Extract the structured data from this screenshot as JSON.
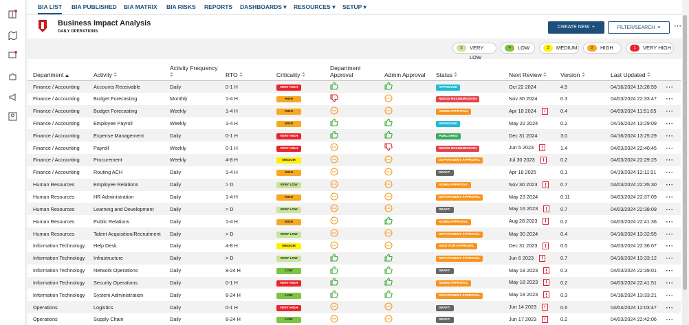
{
  "nav": [
    "BIA LIST",
    "BIA PUBLISHED",
    "BIA MATRIX",
    "BIA RISKS",
    "REPORTS",
    "DASHBOARDS",
    "RESOURCES",
    "SETUP"
  ],
  "header": {
    "title": "Business Impact Analysis",
    "subtitle": "DAILY OPERATIONS",
    "create": "CREATE NEW",
    "filter": "FILTER/SEARCH"
  },
  "legend": [
    {
      "num": "5",
      "label": "VERY LOW",
      "color": "#c8e59a"
    },
    {
      "num": "4",
      "label": "LOW",
      "color": "#7cc443"
    },
    {
      "num": "3",
      "label": "MEDIUM",
      "color": "#fff200"
    },
    {
      "num": "2",
      "label": "HIGH",
      "color": "#f7a823"
    },
    {
      "num": "1",
      "label": "VERY HIGH",
      "color": "#e8242c"
    }
  ],
  "table": {
    "columns": [
      "Department",
      "Activity",
      "Activity Frequency",
      "RTO",
      "Criticality",
      "Department Approval",
      "Admin Approval",
      "Status",
      "Next Review",
      "Version",
      "Last Updated"
    ],
    "rows": [
      {
        "department": "Finance / Accounting",
        "activity": "Accounts Receivable",
        "frequency": "Daily",
        "rto": "0-1 H",
        "criticality": "VERY HIGH",
        "crit_color": "#e8242c",
        "dept": "up",
        "admin": "up",
        "status": "APPROVED",
        "status_color": "#1fbad6",
        "next_review": "Oct 22 2024",
        "overdue": false,
        "version": "4.5",
        "last_updated": "04/16/2024 13:28:59"
      },
      {
        "department": "Finance / Accounting",
        "activity": "Budget Forecasting",
        "frequency": "Monthly",
        "rto": "1-4 H",
        "criticality": "HIGH",
        "crit_color": "#f7a823",
        "dept": "down",
        "admin": "pending",
        "status": "NEEDS RESUBMISSION",
        "status_color": "#e2434b",
        "next_review": "Nov 30 2024",
        "overdue": false,
        "version": "0.3",
        "last_updated": "04/03/2024 22:33:47"
      },
      {
        "department": "Finance / Accounting",
        "activity": "Budget Forecasting",
        "frequency": "Weekly",
        "rto": "1-4 H",
        "criticality": "HIGH",
        "crit_color": "#f7a823",
        "dept": "pending",
        "admin": "pending",
        "status": "ADMIN APPROVAL",
        "status_color": "#f7941d",
        "next_review": "Apr 18 2024",
        "overdue": true,
        "version": "0.4",
        "last_updated": "04/09/2024 11:51:05"
      },
      {
        "department": "Finance / Accounting",
        "activity": "Employee Payroll",
        "frequency": "Weekly",
        "rto": "1-4 H",
        "criticality": "HIGH",
        "crit_color": "#f7a823",
        "dept": "up",
        "admin": "up",
        "status": "APPROVED",
        "status_color": "#1fbad6",
        "next_review": "May 22 2024",
        "overdue": false,
        "version": "0.2",
        "last_updated": "04/16/2024 13:29:09"
      },
      {
        "department": "Finance / Accounting",
        "activity": "Expense Management",
        "frequency": "Daily",
        "rto": "0-1 H",
        "criticality": "VERY HIGH",
        "crit_color": "#e8242c",
        "dept": "up",
        "admin": "up",
        "status": "PUBLISHED",
        "status_color": "#3aaa5c",
        "next_review": "Dec 31 2024",
        "overdue": false,
        "version": "3.0",
        "last_updated": "04/16/2024 13:25:29"
      },
      {
        "department": "Finance / Accounting",
        "activity": "Payroll",
        "frequency": "Weekly",
        "rto": "0-1 H",
        "criticality": "VERY HIGH",
        "crit_color": "#e8242c",
        "dept": "pending",
        "admin": "down",
        "status": "NEEDS RESUBMISSION",
        "status_color": "#e2434b",
        "next_review": "Jun 5 2023",
        "overdue": true,
        "version": "1.4",
        "last_updated": "04/03/2024 22:40:45"
      },
      {
        "department": "Finance / Accounting",
        "activity": "Procurement",
        "frequency": "Weekly",
        "rto": "4-8 H",
        "criticality": "MEDIUM",
        "crit_color": "#fff200",
        "dept": "pending",
        "admin": "pending",
        "status": "DEPARTMENT APPROVAL",
        "status_color": "#f7941d",
        "next_review": "Jul 30 2023",
        "overdue": true,
        "version": "0.2",
        "last_updated": "04/03/2024 22:29:25"
      },
      {
        "department": "Finance / Accounting",
        "activity": "Routing ACH",
        "frequency": "Daily",
        "rto": "1-4 H",
        "criticality": "HIGH",
        "crit_color": "#f7a823",
        "dept": "pending",
        "admin": "pending",
        "status": "DRAFT",
        "status_color": "#666666",
        "next_review": "Apr 18 2025",
        "overdue": false,
        "version": "0.1",
        "last_updated": "04/19/2024 12:11:31"
      },
      {
        "department": "Human Resources",
        "activity": "Employee Relations",
        "frequency": "Daily",
        "rto": "> D",
        "criticality": "VERY LOW",
        "crit_color": "#c8e59a",
        "dept": "pending",
        "admin": "pending",
        "status": "ADMIN APPROVAL",
        "status_color": "#f7941d",
        "next_review": "Nov 30 2023",
        "overdue": true,
        "version": "0.7",
        "last_updated": "04/03/2024 22:35:30"
      },
      {
        "department": "Human Resources",
        "activity": "HR Administration",
        "frequency": "Daily",
        "rto": "1-4 H",
        "criticality": "HIGH",
        "crit_color": "#f7a823",
        "dept": "pending",
        "admin": "pending",
        "status": "DEPARTMENT APPROVAL",
        "status_color": "#f7941d",
        "next_review": "May 23 2024",
        "overdue": false,
        "version": "0.11",
        "last_updated": "04/03/2024 22:37:09"
      },
      {
        "department": "Human Resources",
        "activity": "Learning and Development",
        "frequency": "Daily",
        "rto": "> D",
        "criticality": "VERY LOW",
        "crit_color": "#c8e59a",
        "dept": "pending",
        "admin": "pending",
        "status": "DRAFT",
        "status_color": "#666666",
        "next_review": "May 16 2023",
        "overdue": true,
        "version": "0.7",
        "last_updated": "04/03/2024 22:38:09"
      },
      {
        "department": "Human Resources",
        "activity": "Public Relations",
        "frequency": "Daily",
        "rto": "1-4 H",
        "criticality": "HIGH",
        "crit_color": "#f7a823",
        "dept": "pending",
        "admin": "up",
        "status": "ADMIN APPROVAL",
        "status_color": "#f7941d",
        "next_review": "Aug 28 2023",
        "overdue": true,
        "version": "0.2",
        "last_updated": "04/03/2024 22:41:36"
      },
      {
        "department": "Human Resources",
        "activity": "Talent Acquisition/Recruitment",
        "frequency": "Daily",
        "rto": "> D",
        "criticality": "VERY LOW",
        "crit_color": "#c8e59a",
        "dept": "pending",
        "admin": "pending",
        "status": "DEPARTMENT APPROVAL",
        "status_color": "#f7941d",
        "next_review": "May 30 2024",
        "overdue": false,
        "version": "0.4",
        "last_updated": "04/16/2024 13:32:55"
      },
      {
        "department": "Information Technology",
        "activity": "Help Desk",
        "frequency": "Daily",
        "rto": "4-8 H",
        "criticality": "MEDIUM",
        "crit_color": "#fff200",
        "dept": "pending",
        "admin": "pending",
        "status": "SENT FOR APPROVAL",
        "status_color": "#f7941d",
        "next_review": "Dec 31 2023",
        "overdue": true,
        "version": "0.5",
        "last_updated": "04/03/2024 22:36:07"
      },
      {
        "department": "Information Technology",
        "activity": "Infrastructure",
        "frequency": "Daily",
        "rto": "> D",
        "criticality": "VERY LOW",
        "crit_color": "#c8e59a",
        "dept": "up",
        "admin": "up",
        "status": "DEPARTMENT APPROVAL",
        "status_color": "#f7941d",
        "next_review": "Jun 6 2023",
        "overdue": true,
        "version": "0.7",
        "last_updated": "04/16/2024 13:33:12"
      },
      {
        "department": "Information Technology",
        "activity": "Network Operations",
        "frequency": "Daily",
        "rto": "8-24 H",
        "criticality": "LOW",
        "crit_color": "#7cc443",
        "dept": "up",
        "admin": "up",
        "status": "DRAFT",
        "status_color": "#666666",
        "next_review": "May 18 2023",
        "overdue": true,
        "version": "0.3",
        "last_updated": "04/03/2024 22:39:01"
      },
      {
        "department": "Information Technology",
        "activity": "Security Operations",
        "frequency": "Daily",
        "rto": "0-1 H",
        "criticality": "VERY HIGH",
        "crit_color": "#e8242c",
        "dept": "up",
        "admin": "up",
        "status": "ADMIN APPROVAL",
        "status_color": "#f7941d",
        "next_review": "May 18 2023",
        "overdue": true,
        "version": "0.2",
        "last_updated": "04/03/2024 22:41:51"
      },
      {
        "department": "Information Technology",
        "activity": "System Administration",
        "frequency": "Daily",
        "rto": "8-24 H",
        "criticality": "LOW",
        "crit_color": "#7cc443",
        "dept": "up",
        "admin": "up",
        "status": "DEPARTMENT APPROVAL",
        "status_color": "#f7941d",
        "next_review": "May 18 2023",
        "overdue": true,
        "version": "0.3",
        "last_updated": "04/16/2024 13:33:21"
      },
      {
        "department": "Operations",
        "activity": "Logistics",
        "frequency": "Daily",
        "rto": "0-1 H",
        "criticality": "VERY HIGH",
        "crit_color": "#e8242c",
        "dept": "pending",
        "admin": "pending",
        "status": "DRAFT",
        "status_color": "#666666",
        "next_review": "Jun 14 2023",
        "overdue": true,
        "version": "0.6",
        "last_updated": "04/04/2024 12:03:47"
      },
      {
        "department": "Operations",
        "activity": "Supply Chain",
        "frequency": "Daily",
        "rto": "8-24 H",
        "criticality": "LOW",
        "crit_color": "#7cc443",
        "dept": "pending",
        "admin": "pending",
        "status": "DRAFT",
        "status_color": "#666666",
        "next_review": "Jun 17 2023",
        "overdue": true,
        "version": "0.2",
        "last_updated": "04/03/2024 22:42:06"
      }
    ]
  }
}
